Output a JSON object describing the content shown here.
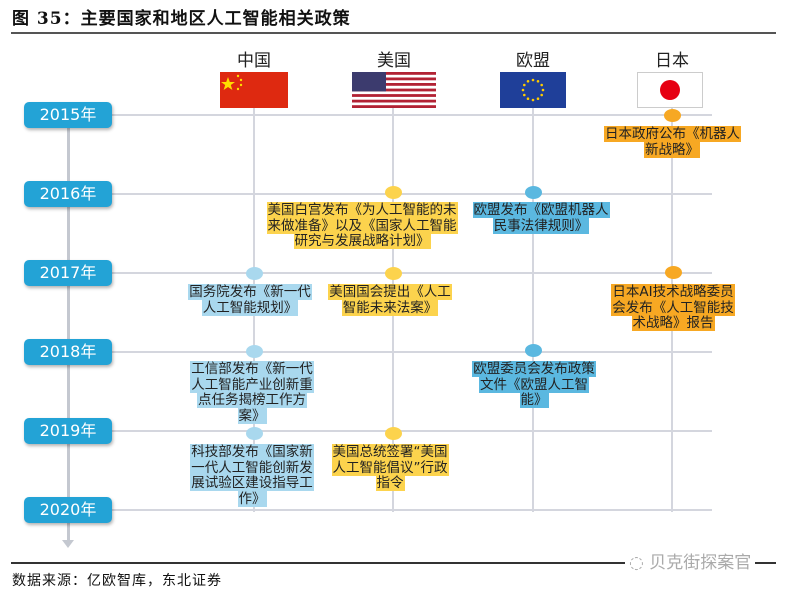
{
  "title": "图 35：主要国家和地区人工智能相关政策",
  "countries": [
    {
      "name": "中国"
    },
    {
      "name": "美国"
    },
    {
      "name": "欧盟"
    },
    {
      "name": "日本"
    }
  ],
  "years": [
    "2015年",
    "2016年",
    "2017年",
    "2018年",
    "2019年",
    "2020年"
  ],
  "colors": {
    "china": "#a9d8ee",
    "us": "#fcd34d",
    "eu": "#5bb8e0",
    "japan": "#f7a823",
    "year": "#23a3d6"
  },
  "events": [
    {
      "country": "日本",
      "year": "2015年",
      "text": "日本政府公布《机器人新战略》"
    },
    {
      "country": "美国",
      "year": "2016年",
      "text": "美国白宫发布《为人工智能的未来做准备》以及《国家人工智能研究与发展战略计划》"
    },
    {
      "country": "欧盟",
      "year": "2016年",
      "text": "欧盟发布《欧盟机器人民事法律规则》"
    },
    {
      "country": "中国",
      "year": "2017年",
      "text": "国务院发布《新一代人工智能规划》"
    },
    {
      "country": "美国",
      "year": "2017年",
      "text": "美国国会提出《人工智能未来法案》"
    },
    {
      "country": "日本",
      "year": "2017年",
      "text": "日本AI技术战略委员会发布《人工智能技术战略》报告"
    },
    {
      "country": "中国",
      "year": "2018年",
      "text": "工信部发布《新一代人工智能产业创新重点任务揭榜工作方案》"
    },
    {
      "country": "欧盟",
      "year": "2018年",
      "text": "欧盟委员会发布政策文件《欧盟人工智能》"
    },
    {
      "country": "中国",
      "year": "2019年",
      "text": "科技部发布《国家新一代人工智能创新发展试验区建设指导工作》"
    },
    {
      "country": "美国",
      "year": "2019年",
      "text": "美国总统签署“美国人工智能倡议”行政指令"
    }
  ],
  "watermark": "贝克街探案官",
  "source": "数据来源：亿欧智库，东北证券"
}
